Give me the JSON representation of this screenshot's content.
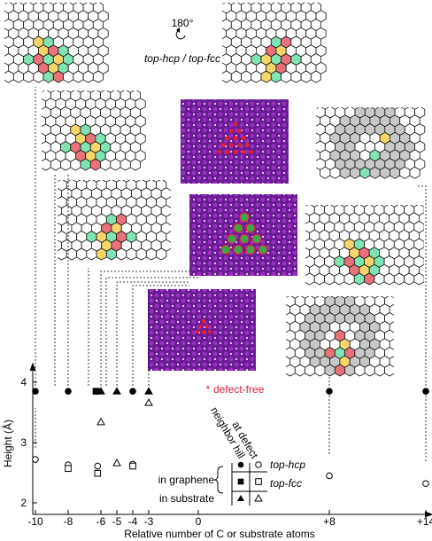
{
  "rotation": {
    "angle": "180°",
    "caption": "top-hcp / top-fcc"
  },
  "labels": {
    "defect_free": "defect-free",
    "col_at_defect": "at defect",
    "col_neighbor_hill": "neighbor hill",
    "row_graphene": "in graphene",
    "row_substrate": "in substrate",
    "legend_top_hcp": "top-hcp",
    "legend_top_fcc": "top-fcc"
  },
  "colors": {
    "ring_pink": "#e8717a",
    "ring_yellow": "#f7d56b",
    "ring_green": "#7fe3b2",
    "ring_gray": "#c8c8c8",
    "stm_purple": "#7a1fa0",
    "stm_red": "#e0203a",
    "stm_green": "#3aa64a",
    "defect_free_red": "#e0203a"
  },
  "chart_data": {
    "type": "scatter",
    "xlabel": "Relative number of C or substrate atoms",
    "ylabel": "Height (Å)",
    "x_ticks": [
      "-10",
      "-8",
      "-6",
      "-5",
      "-4",
      "-3",
      "0",
      "+8",
      "+14"
    ],
    "y_ticks": [
      "2",
      "3",
      "4"
    ],
    "ylim": [
      1.75,
      4.25
    ],
    "series": [
      {
        "name": "neighbor hill",
        "points": [
          [
            -10,
            3.85
          ],
          [
            -8,
            3.85
          ],
          [
            -6.2,
            3.85
          ],
          [
            -4,
            3.85
          ],
          [
            8,
            3.85
          ],
          [
            14,
            3.85
          ]
        ]
      },
      {
        "name": "neighbor hill",
        "points": [
          [
            -6,
            3.85
          ],
          [
            -5,
            3.85
          ],
          [
            -3,
            3.85
          ]
        ]
      },
      {
        "name": "at defect",
        "points": [
          [
            -10,
            2.72
          ],
          [
            -8,
            2.63
          ],
          [
            -6.2,
            2.61
          ],
          [
            -4,
            2.64
          ],
          [
            8,
            2.45
          ],
          [
            14,
            2.32
          ]
        ]
      },
      {
        "name": "at defect",
        "points": [
          [
            -8,
            2.57
          ],
          [
            -6.2,
            2.49
          ],
          [
            -4,
            2.61
          ]
        ]
      },
      {
        "name": "at defect",
        "points": [
          [
            -6,
            3.34
          ],
          [
            -5,
            2.66
          ],
          [
            -3,
            3.66
          ]
        ]
      }
    ]
  }
}
